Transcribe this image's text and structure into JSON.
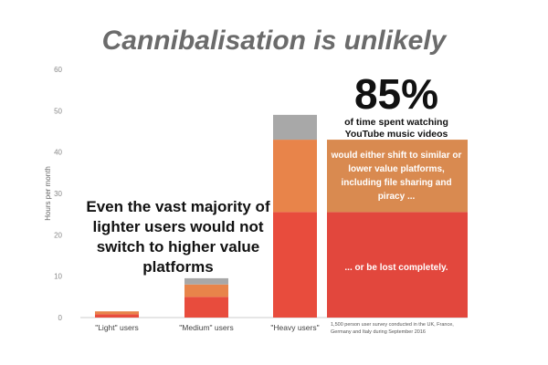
{
  "title": "Cannibalisation is unlikely",
  "callout_text": "Even the vast majority of lighter users would not switch to higher value platforms",
  "highlight": {
    "percentage": "85%",
    "caption": "of time spent watching YouTube music videos",
    "shift_text": "would either shift to similar or lower value platforms, including file sharing and piracy ...",
    "lost_text": "... or be lost completely."
  },
  "footnote": "1,500 person user survey conducted in the UK, France, Germany and Italy during September 2016",
  "colors": {
    "red": "#e84c3d",
    "orange": "#e8844a",
    "gray": "#a8a8a8",
    "box_orange": "#d98a50",
    "box_red": "#e2473d"
  },
  "chart_data": {
    "type": "bar",
    "stacked": true,
    "categories": [
      "\"Light\" users",
      "\"Medium\" users",
      "\"Heavy users\""
    ],
    "series": [
      {
        "values": [
          0.8,
          5,
          25.5
        ],
        "color": "#e84c3d"
      },
      {
        "values": [
          0.7,
          3,
          17.5
        ],
        "color": "#e8844a"
      },
      {
        "values": [
          0,
          1.5,
          6
        ],
        "color": "#a8a8a8"
      }
    ],
    "highlight_bar": {
      "values": [
        25.5,
        17.5
      ]
    },
    "ylabel": "Hours per month",
    "ylim": [
      0,
      60
    ],
    "yticks": [
      0,
      10,
      20,
      30,
      40,
      50,
      60
    ],
    "grid": false
  }
}
